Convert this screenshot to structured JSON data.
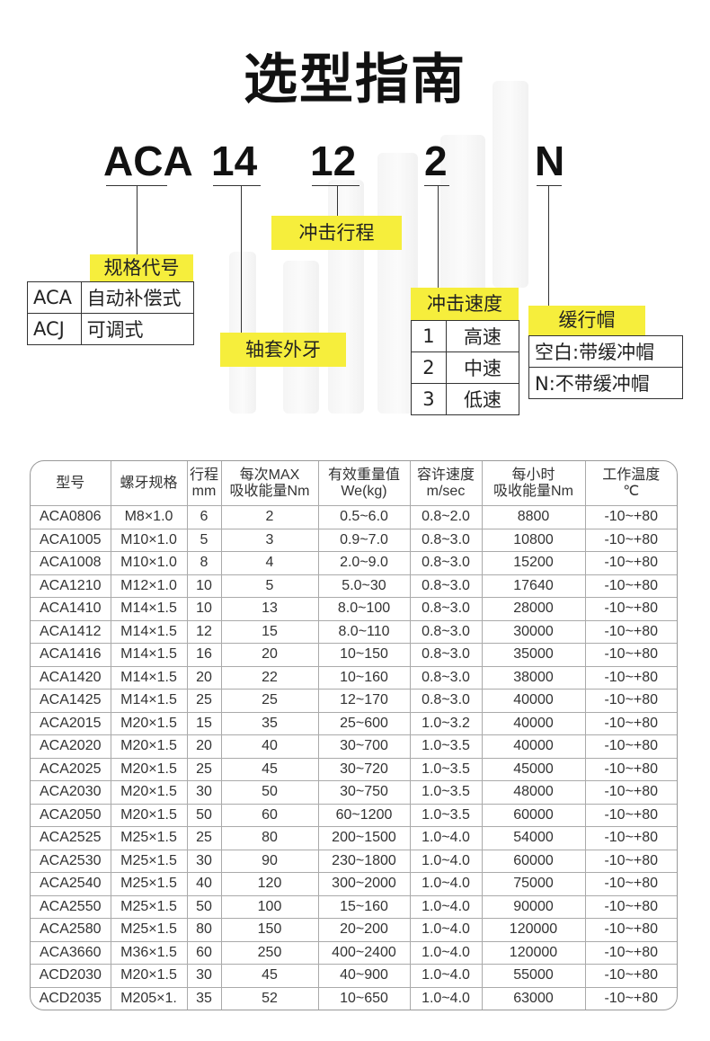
{
  "title": "选型指南",
  "code": {
    "series": "ACA",
    "thread": "14",
    "stroke": "12",
    "speed": "2",
    "cap": "N"
  },
  "labels": {
    "series": "规格代号",
    "stroke": "冲击行程",
    "thread": "轴套外牙",
    "speed": "冲击速度",
    "cap": "缓行帽"
  },
  "series_options": [
    {
      "code": "ACA",
      "desc": "自动补偿式"
    },
    {
      "code": "ACJ",
      "desc": "可调式"
    }
  ],
  "speed_options": [
    {
      "code": "1",
      "desc": "高速"
    },
    {
      "code": "2",
      "desc": "中速"
    },
    {
      "code": "3",
      "desc": "低速"
    }
  ],
  "cap_options": [
    "空白:带缓冲帽",
    "N:不带缓冲帽"
  ],
  "table": {
    "headers": [
      [
        "型号",
        ""
      ],
      [
        "螺牙规格",
        ""
      ],
      [
        "行程",
        "mm"
      ],
      [
        "每次MAX",
        "吸收能量Nm"
      ],
      [
        "有效重量值",
        "We(kg)"
      ],
      [
        "容许速度",
        "m/sec"
      ],
      [
        "每小时",
        "吸收能量Nm"
      ],
      [
        "工作温度",
        "℃"
      ]
    ],
    "rows": [
      [
        "ACA0806",
        "M8×1.0",
        "6",
        "2",
        "0.5~6.0",
        "0.8~2.0",
        "8800",
        "-10~+80"
      ],
      [
        "ACA1005",
        "M10×1.0",
        "5",
        "3",
        "0.9~7.0",
        "0.8~3.0",
        "10800",
        "-10~+80"
      ],
      [
        "ACA1008",
        "M10×1.0",
        "8",
        "4",
        "2.0~9.0",
        "0.8~3.0",
        "15200",
        "-10~+80"
      ],
      [
        "ACA1210",
        "M12×1.0",
        "10",
        "5",
        "5.0~30",
        "0.8~3.0",
        "17640",
        "-10~+80"
      ],
      [
        "ACA1410",
        "M14×1.5",
        "10",
        "13",
        "8.0~100",
        "0.8~3.0",
        "28000",
        "-10~+80"
      ],
      [
        "ACA1412",
        "M14×1.5",
        "12",
        "15",
        "8.0~110",
        "0.8~3.0",
        "30000",
        "-10~+80"
      ],
      [
        "ACA1416",
        "M14×1.5",
        "16",
        "20",
        "10~150",
        "0.8~3.0",
        "35000",
        "-10~+80"
      ],
      [
        "ACA1420",
        "M14×1.5",
        "20",
        "22",
        "10~160",
        "0.8~3.0",
        "38000",
        "-10~+80"
      ],
      [
        "ACA1425",
        "M14×1.5",
        "25",
        "25",
        "12~170",
        "0.8~3.0",
        "40000",
        "-10~+80"
      ],
      [
        "ACA2015",
        "M20×1.5",
        "15",
        "35",
        "25~600",
        "1.0~3.2",
        "40000",
        "-10~+80"
      ],
      [
        "ACA2020",
        "M20×1.5",
        "20",
        "40",
        "30~700",
        "1.0~3.5",
        "40000",
        "-10~+80"
      ],
      [
        "ACA2025",
        "M20×1.5",
        "25",
        "45",
        "30~720",
        "1.0~3.5",
        "45000",
        "-10~+80"
      ],
      [
        "ACA2030",
        "M20×1.5",
        "30",
        "50",
        "30~750",
        "1.0~3.5",
        "48000",
        "-10~+80"
      ],
      [
        "ACA2050",
        "M20×1.5",
        "50",
        "60",
        "60~1200",
        "1.0~3.5",
        "60000",
        "-10~+80"
      ],
      [
        "ACA2525",
        "M25×1.5",
        "25",
        "80",
        "200~1500",
        "1.0~4.0",
        "54000",
        "-10~+80"
      ],
      [
        "ACA2530",
        "M25×1.5",
        "30",
        "90",
        "230~1800",
        "1.0~4.0",
        "60000",
        "-10~+80"
      ],
      [
        "ACA2540",
        "M25×1.5",
        "40",
        "120",
        "300~2000",
        "1.0~4.0",
        "75000",
        "-10~+80"
      ],
      [
        "ACA2550",
        "M25×1.5",
        "50",
        "100",
        "15~160",
        "1.0~4.0",
        "90000",
        "-10~+80"
      ],
      [
        "ACA2580",
        "M25×1.5",
        "80",
        "150",
        "20~200",
        "1.0~4.0",
        "120000",
        "-10~+80"
      ],
      [
        "ACA3660",
        "M36×1.5",
        "60",
        "250",
        "400~2400",
        "1.0~4.0",
        "120000",
        "-10~+80"
      ],
      [
        "ACD2030",
        "M20×1.5",
        "30",
        "45",
        "40~900",
        "1.0~4.0",
        "55000",
        "-10~+80"
      ],
      [
        "ACD2035",
        "M205×1.",
        "35",
        "52",
        "10~650",
        "1.0~4.0",
        "63000",
        "-10~+80"
      ]
    ]
  }
}
